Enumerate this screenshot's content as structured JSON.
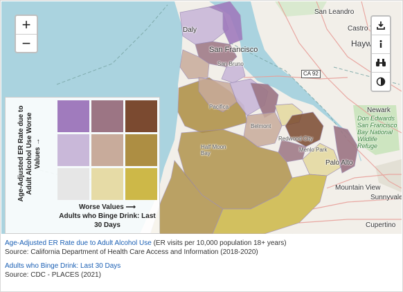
{
  "map": {
    "labels": {
      "san_leandro": "San Leandro",
      "castro_valley": "Castro Va",
      "hayward": "Haywa",
      "san_francisco": "San Francisco",
      "daly": "Daly",
      "san_bruno": "San Bruno",
      "pacifica": "Pacifica",
      "half_moon_bay": "Half Moon\nBay",
      "belmont": "Belmont",
      "redwood_city": "Redwood City",
      "palo_alto": "Palo Alto",
      "menlo_park": "Menlo Park",
      "newark": "Newark",
      "refuge": "Don Edwards\nSan Francisco\nBay National\nWildlife\nRefuge",
      "mountain_view": "Mountain View",
      "sunnyvale": "Sunnyvale",
      "cupertino": "Cupertino",
      "ca_route": "CA 92"
    }
  },
  "controls": {
    "zoom_in": "+",
    "zoom_out": "−",
    "tools": [
      "download-icon",
      "info-icon",
      "binoculars-icon",
      "contrast-icon"
    ]
  },
  "legend": {
    "y_label": "Age-Adjusted ER Rate due to Adult Alcohol Use Worse Values →",
    "x_label_line1": "Worse Values ⟶",
    "x_label_line2": "Adults who Binge Drink: Last 30 Days",
    "colors": [
      [
        "#a07bbd",
        "#9c7584",
        "#7b4a30"
      ],
      [
        "#c9b8d9",
        "#c8ab9b",
        "#ad8e43"
      ],
      [
        "#e6e6e6",
        "#e6dba6",
        "#cdb848"
      ]
    ]
  },
  "sources": {
    "er_link": "Age-Adjusted ER Rate due to Adult Alcohol Use",
    "er_units": "(ER visits per 10,000 population 18+ years)",
    "er_source": "Source: California Department of Health Care Access and Information (2018-2020)",
    "binge_link": "Adults who Binge Drink: Last 30 Days",
    "binge_source": "Source: CDC - PLACES (2021)"
  }
}
